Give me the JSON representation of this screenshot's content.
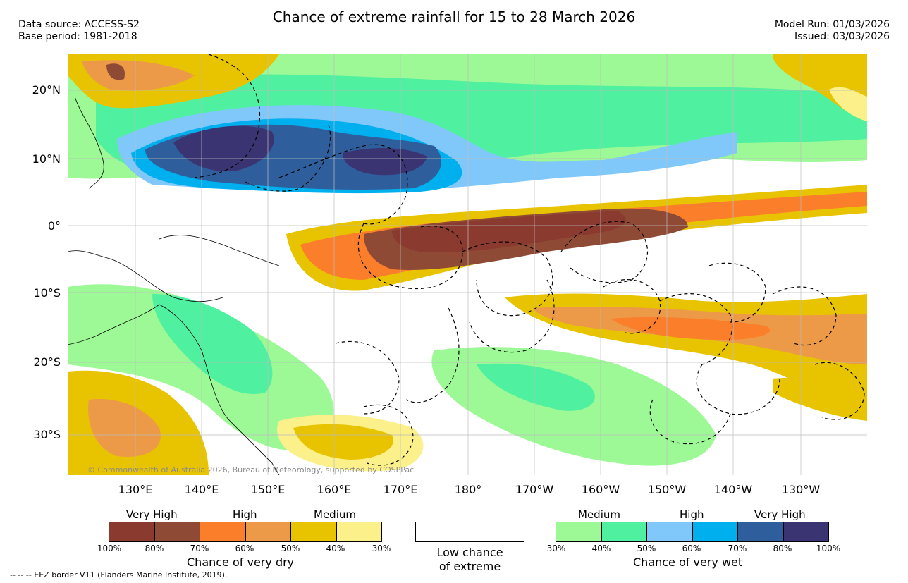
{
  "header": {
    "title": "Chance of extreme rainfall for 15 to 28 March 2026",
    "data_source": "Data source: ACCESS-S2",
    "base_period": "Base period: 1981-2018",
    "model_run": "Model Run: 01/03/2026",
    "issued": "Issued: 03/03/2026"
  },
  "map": {
    "lat_labels": [
      "20°N",
      "10°N",
      "0°",
      "10°S",
      "20°S",
      "30°S"
    ],
    "lon_labels": [
      "130°E",
      "140°E",
      "150°E",
      "160°E",
      "170°E",
      "180°",
      "170°W",
      "160°W",
      "150°W",
      "140°W",
      "130°W"
    ],
    "copyright": "© Commonwealth of Australia 2026, Bureau of Meteorology, supported by COSPPac"
  },
  "legend_dry": {
    "categories": [
      "Very High",
      "High",
      "Medium"
    ],
    "ticks": [
      "100%",
      "80%",
      "70%",
      "60%",
      "50%",
      "40%",
      "30%"
    ],
    "colors": [
      "#8a3a2e",
      "#8f4a35",
      "#fb7e2a",
      "#ec9a48",
      "#e8c300",
      "#fcf08a"
    ],
    "title": "Chance of very dry"
  },
  "legend_low": {
    "line1": "Low chance",
    "line2": "of extreme"
  },
  "legend_wet": {
    "categories": [
      "Medium",
      "High",
      "Very High"
    ],
    "ticks": [
      "30%",
      "40%",
      "50%",
      "60%",
      "70%",
      "80%",
      "100%"
    ],
    "colors": [
      "#9cf996",
      "#4ff0a0",
      "#80c8fa",
      "#00b0ee",
      "#2e5f9c",
      "#3a3473"
    ],
    "title": "Chance of very wet"
  },
  "footer": {
    "eez_note": "-- -- -- EEZ border V11 (Flanders Marine Institute, 2019)."
  }
}
